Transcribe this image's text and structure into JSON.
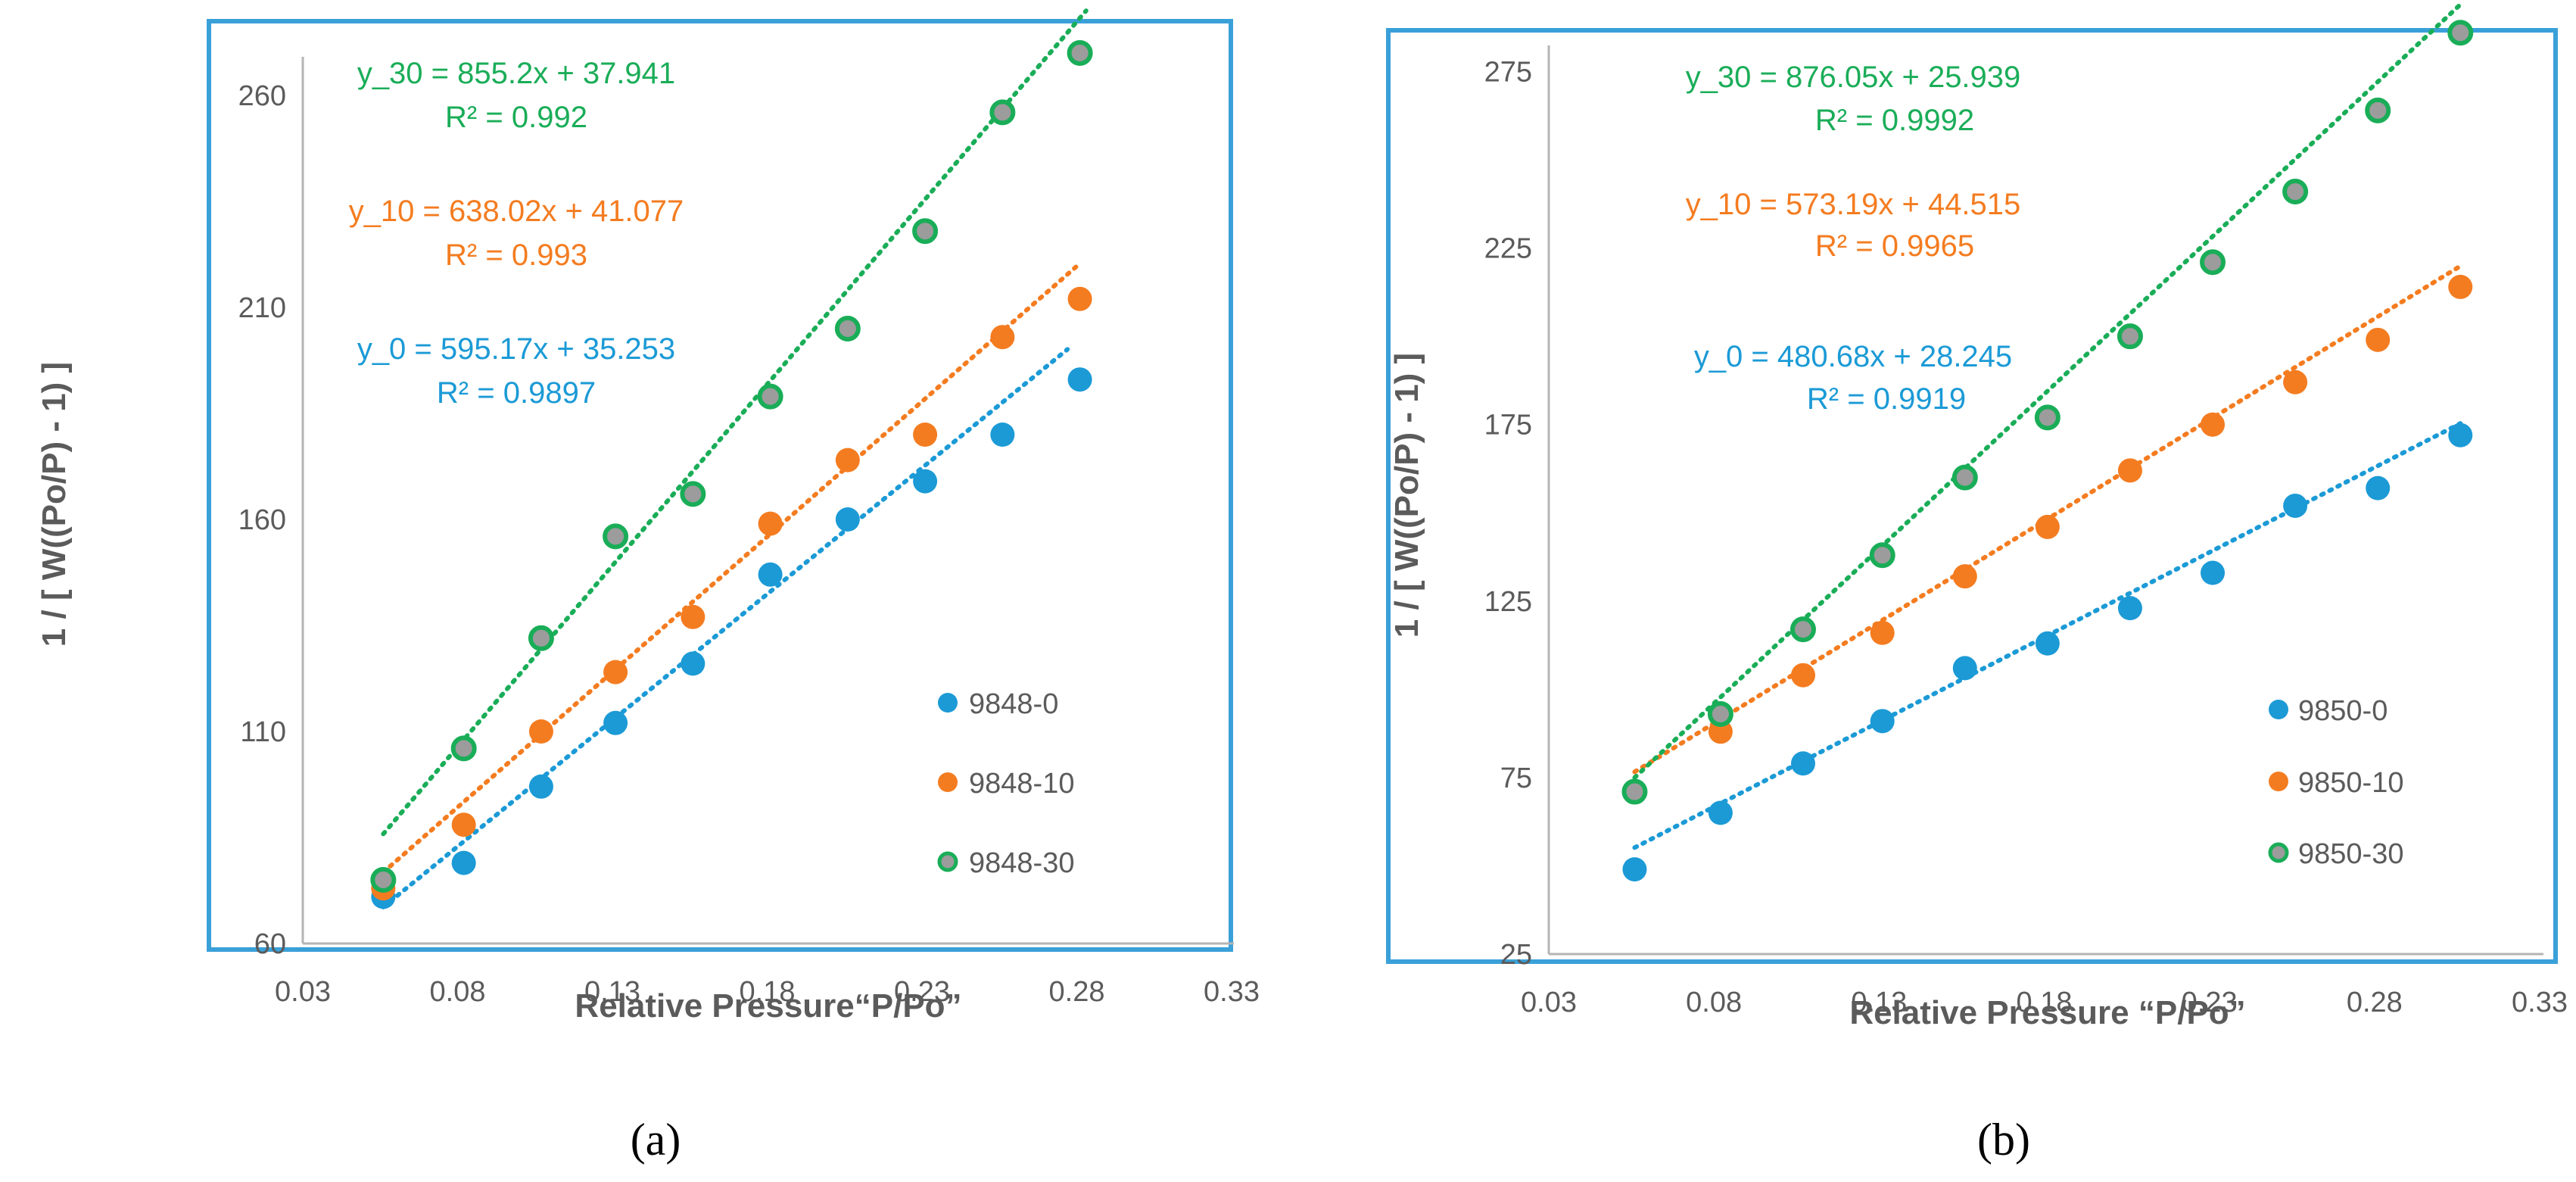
{
  "colors": {
    "s0": "#1b9ad6",
    "s10": "#f47c20",
    "s30": "#1aad58",
    "s30_fill": "#9c9c9c",
    "frame": "#3aa0d8",
    "axis": "#b4b4b4",
    "text": "#5b5b5b"
  },
  "chart_data": [
    {
      "type": "scatter",
      "panel_label": "(a)",
      "xlabel": "Relative Pressure“P/Po”",
      "ylabel": "1 / [ W((Po/P) - 1) ]",
      "xlim": [
        0.03,
        0.33
      ],
      "ylim": [
        60,
        280
      ],
      "xticks": [
        0.03,
        0.08,
        0.13,
        0.18,
        0.23,
        0.28,
        0.33
      ],
      "xtick_labels": [
        "0.03",
        "0.08",
        "0.13",
        "0.18",
        "0.23",
        "0.28",
        "0.33"
      ],
      "yticks": [
        60,
        110,
        160,
        210,
        260
      ],
      "ytick_labels": [
        "60",
        "110",
        "160",
        "210",
        "260"
      ],
      "legend_position": "bottom-right",
      "series": [
        {
          "key": "s0",
          "name": "9848-0",
          "x": [
            0.056,
            0.082,
            0.107,
            0.131,
            0.156,
            0.181,
            0.206,
            0.231,
            0.256,
            0.281
          ],
          "y": [
            71,
            79,
            97,
            112,
            126,
            147,
            160,
            169,
            180,
            193
          ],
          "fit": {
            "slope": 595.17,
            "intercept": 35.253,
            "x_range": [
              0.056,
              0.277
            ]
          },
          "equation": "y_0 = 595.17x + 35.253",
          "r2": "R² = 0.9897"
        },
        {
          "key": "s10",
          "name": "9848-10",
          "x": [
            0.056,
            0.082,
            0.107,
            0.131,
            0.156,
            0.181,
            0.206,
            0.231,
            0.256,
            0.281
          ],
          "y": [
            73,
            88,
            110,
            124,
            137,
            159,
            174,
            180,
            203,
            212
          ],
          "fit": {
            "slope": 638.02,
            "intercept": 41.077,
            "x_range": [
              0.056,
              0.28
            ]
          },
          "equation": "y_10 = 638.02x + 41.077",
          "r2": "R² = 0.993"
        },
        {
          "key": "s30",
          "name": "9848-30",
          "x": [
            0.056,
            0.082,
            0.107,
            0.131,
            0.156,
            0.181,
            0.206,
            0.231,
            0.256,
            0.281
          ],
          "y": [
            75,
            106,
            132,
            156,
            166,
            189,
            205,
            228,
            256,
            270
          ],
          "fit": {
            "slope": 855.2,
            "intercept": 37.941,
            "x_range": [
              0.056,
              0.283
            ]
          },
          "equation": "y_30 = 855.2x + 37.941",
          "r2": "R² = 0.992"
        }
      ]
    },
    {
      "type": "scatter",
      "panel_label": "(b)",
      "xlabel": "Relative Pressure “P/Po”",
      "ylabel": "1 / [ W((Po/P) - 1) ]",
      "xlim": [
        0.03,
        0.33
      ],
      "ylim": [
        25,
        295
      ],
      "xticks": [
        0.03,
        0.08,
        0.13,
        0.18,
        0.23,
        0.28,
        0.33
      ],
      "xtick_labels": [
        "0.03",
        "0.08",
        "0.13",
        "0.18",
        "0.23",
        "0.28",
        "0.33"
      ],
      "yticks": [
        25,
        75,
        125,
        175,
        225,
        275
      ],
      "ytick_labels": [
        "25",
        "75",
        "125",
        "175",
        "225",
        "275"
      ],
      "legend_position": "bottom-right",
      "series": [
        {
          "key": "s0",
          "name": "9850-0",
          "x": [
            0.056,
            0.082,
            0.107,
            0.131,
            0.156,
            0.181,
            0.206,
            0.231,
            0.256,
            0.281,
            0.306
          ],
          "y": [
            49,
            65,
            79,
            91,
            106,
            113,
            123,
            133,
            152,
            157,
            172
          ],
          "fit": {
            "slope": 480.68,
            "intercept": 28.245,
            "x_range": [
              0.056,
              0.306
            ]
          },
          "equation": "y_0 = 480.68x + 28.245",
          "r2": "R² = 0.9919"
        },
        {
          "key": "s10",
          "name": "9850-10",
          "x": [
            0.056,
            0.082,
            0.107,
            0.131,
            0.156,
            0.181,
            0.206,
            0.231,
            0.256,
            0.281,
            0.306
          ],
          "y": [
            71,
            88,
            104,
            116,
            132,
            146,
            162,
            175,
            187,
            199,
            214
          ],
          "fit": {
            "slope": 573.19,
            "intercept": 44.515,
            "x_range": [
              0.056,
              0.306
            ]
          },
          "equation": "y_10 = 573.19x + 44.515",
          "r2": "R² = 0.9965"
        },
        {
          "key": "s30",
          "name": "9850-30",
          "x": [
            0.056,
            0.082,
            0.107,
            0.131,
            0.156,
            0.181,
            0.206,
            0.231,
            0.256,
            0.281,
            0.306
          ],
          "y": [
            71,
            93,
            117,
            138,
            160,
            177,
            200,
            221,
            241,
            264,
            286
          ],
          "fit": {
            "slope": 876.05,
            "intercept": 25.939,
            "x_range": [
              0.056,
              0.306
            ]
          },
          "equation": "y_30 = 876.05x + 25.939",
          "r2": "R² = 0.9992"
        }
      ]
    }
  ]
}
